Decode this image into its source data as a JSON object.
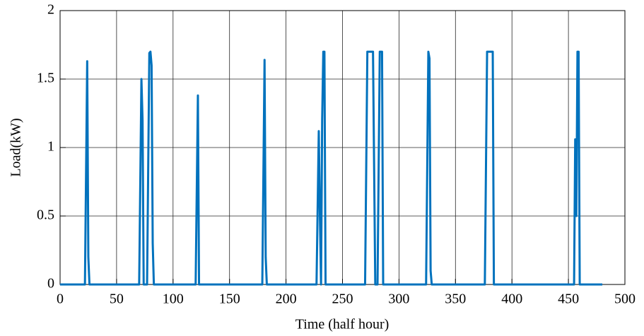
{
  "chart_data": {
    "type": "line",
    "xlabel": "Time (half hour)",
    "ylabel": "Load(kW)",
    "x": [
      0,
      22,
      24,
      25,
      26,
      70,
      72,
      73,
      74,
      77,
      79,
      80,
      81,
      82,
      83,
      120,
      122,
      123,
      179,
      181,
      182,
      183,
      227,
      229,
      230,
      231,
      232,
      233,
      234,
      235,
      270,
      272,
      277,
      279,
      281,
      283,
      285,
      286,
      324,
      326,
      327,
      328,
      329,
      376,
      378,
      383,
      384,
      455,
      456,
      457,
      458,
      459,
      460,
      480
    ],
    "series": [
      {
        "color": "#0072bd",
        "values": [
          0,
          0,
          1.63,
          0.2,
          0,
          0,
          1.5,
          1.2,
          0,
          0,
          1.69,
          1.7,
          1.6,
          0.3,
          0,
          0,
          1.38,
          0,
          0,
          1.64,
          0.2,
          0,
          0,
          1.12,
          0.5,
          0,
          1.2,
          1.7,
          1.7,
          0,
          0,
          1.7,
          1.7,
          0,
          0,
          1.7,
          1.7,
          0,
          0,
          1.7,
          1.65,
          0.1,
          0,
          0,
          1.7,
          1.7,
          0,
          0,
          1.06,
          0.5,
          1.7,
          1.7,
          0,
          0
        ]
      }
    ],
    "xlim": [
      0,
      500
    ],
    "xticks": [
      0,
      50,
      100,
      150,
      200,
      250,
      300,
      350,
      400,
      450,
      500
    ],
    "ylim": [
      0,
      2
    ],
    "yticks": [
      0,
      0.5,
      1,
      1.5,
      2
    ],
    "grid": true
  }
}
